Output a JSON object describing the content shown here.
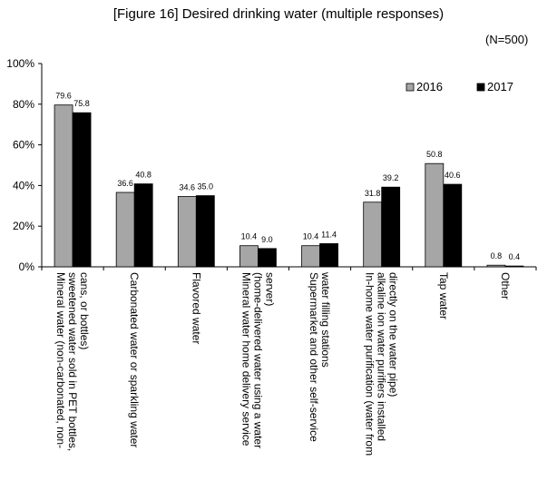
{
  "title": "[Figure 16] Desired drinking water (multiple responses)",
  "sample_note": "(N=500)",
  "chart_data": {
    "type": "bar",
    "categories": [
      "Mineral water (non-carbonated, non-sweetened water sold in PET bottles, cans, or bottles)",
      "Carbonated water or sparkling water",
      "Flavored water",
      "Mineral water home delivery service (home-delivered water using a water server)",
      "Supermarket and other self-service water filling stations",
      "In-home water purification (water from alkaline ion water purifiers installed directly on the water pipe)",
      "Tap water",
      "Other"
    ],
    "category_lines": [
      [
        "Mineral water (non-carbonated, non-",
        "sweetened water sold in PET bottles,",
        "cans, or bottles)"
      ],
      [
        "Carbonated water or sparkling water"
      ],
      [
        "Flavored water"
      ],
      [
        "Mineral water home delivery service",
        "(home-delivered water using a water",
        "server)"
      ],
      [
        "Supermarket and other self-service",
        "water filling stations"
      ],
      [
        "In-home water purification (water from",
        "alkaline ion water purifiers installed",
        "directly on the water pipe)"
      ],
      [
        "Tap water"
      ],
      [
        "Other"
      ]
    ],
    "series": [
      {
        "name": "2016",
        "color": "#a6a6a6",
        "values": [
          79.6,
          36.6,
          34.6,
          10.4,
          10.4,
          31.8,
          50.8,
          0.8
        ],
        "labels": [
          "79.6",
          "36.6",
          "34.6",
          "10.4",
          "10.4",
          "31.8",
          "50.8",
          "0.8"
        ]
      },
      {
        "name": "2017",
        "color": "#000000",
        "values": [
          75.8,
          40.8,
          35.0,
          9.0,
          11.4,
          39.2,
          40.6,
          0.4
        ],
        "labels": [
          "75.8",
          "40.8",
          "35.0",
          "9.0",
          "11.4",
          "39.2",
          "40.6",
          "0.4"
        ]
      }
    ],
    "yticks": [
      "0%",
      "20%",
      "40%",
      "60%",
      "80%",
      "100%"
    ],
    "ylim": [
      0,
      100
    ],
    "grid": false,
    "legend_position": "top-right"
  }
}
